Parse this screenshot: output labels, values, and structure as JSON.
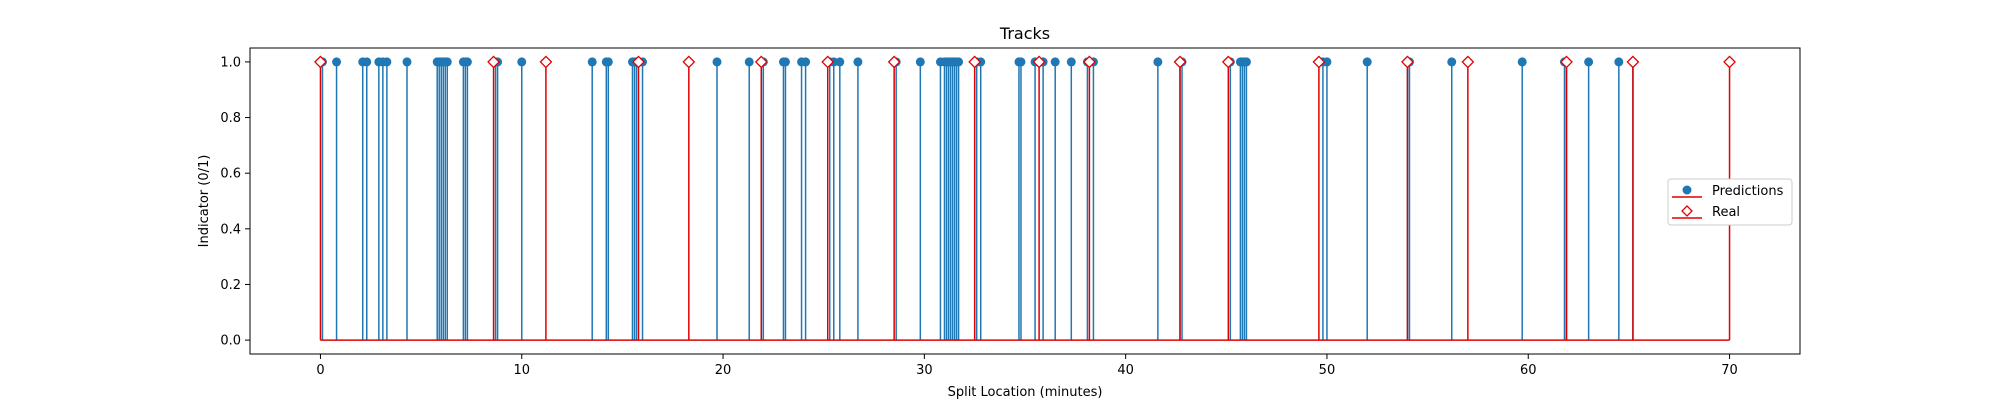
{
  "chart_data": {
    "type": "stem",
    "title": "Tracks",
    "xlabel": "Split Location (minutes)",
    "ylabel": "Indicator (0/1)",
    "xlim": [
      -3.5,
      73.5
    ],
    "ylim": [
      -0.05,
      1.05
    ],
    "xticks": [
      "0",
      "10",
      "20",
      "30",
      "40",
      "50",
      "60",
      "70"
    ],
    "xtick_values": [
      0,
      10,
      20,
      30,
      40,
      50,
      60,
      70
    ],
    "yticks": [
      "0.0",
      "0.2",
      "0.4",
      "0.6",
      "0.8",
      "1.0"
    ],
    "ytick_values": [
      0.0,
      0.2,
      0.4,
      0.6,
      0.8,
      1.0
    ],
    "legend_position": "center-right",
    "series": [
      {
        "name": "Predictions",
        "color": "#1f77b4",
        "marker": "circle",
        "x": [
          0.1,
          0.8,
          2.1,
          2.3,
          2.9,
          3.1,
          3.3,
          4.3,
          5.8,
          5.9,
          6.0,
          6.1,
          6.2,
          6.3,
          7.1,
          7.2,
          7.3,
          8.7,
          8.8,
          10.0,
          13.5,
          14.2,
          14.3,
          15.5,
          15.6,
          15.7,
          16.0,
          19.7,
          21.3,
          21.9,
          22.0,
          23.0,
          23.1,
          23.9,
          24.1,
          25.3,
          25.5,
          25.8,
          26.7,
          28.6,
          29.8,
          30.8,
          31.0,
          31.1,
          31.2,
          31.3,
          31.4,
          31.5,
          31.6,
          31.7,
          32.6,
          32.8,
          34.7,
          34.8,
          35.5,
          35.9,
          36.5,
          37.3,
          38.1,
          38.4,
          41.6,
          42.7,
          42.8,
          45.2,
          45.7,
          45.8,
          45.9,
          46.0,
          49.8,
          50.0,
          52.0,
          54.0,
          54.1,
          56.2,
          59.7,
          61.8,
          61.9,
          63.0,
          64.5,
          65.2
        ],
        "y": [
          1,
          1,
          1,
          1,
          1,
          1,
          1,
          1,
          1,
          1,
          1,
          1,
          1,
          1,
          1,
          1,
          1,
          1,
          1,
          1,
          1,
          1,
          1,
          1,
          1,
          1,
          1,
          1,
          1,
          1,
          1,
          1,
          1,
          1,
          1,
          1,
          1,
          1,
          1,
          1,
          1,
          1,
          1,
          1,
          1,
          1,
          1,
          1,
          1,
          1,
          1,
          1,
          1,
          1,
          1,
          1,
          1,
          1,
          1,
          1,
          1,
          1,
          1,
          1,
          1,
          1,
          1,
          1,
          1,
          1,
          1,
          1,
          1,
          1,
          1,
          1,
          1,
          1,
          1,
          1
        ]
      },
      {
        "name": "Real",
        "color": "#e00000",
        "marker": "diamond",
        "x": [
          0.0,
          8.6,
          11.2,
          15.8,
          18.3,
          21.9,
          25.2,
          28.5,
          32.5,
          35.7,
          38.2,
          42.7,
          45.1,
          49.6,
          54.0,
          57.0,
          61.9,
          65.2,
          70.0
        ],
        "y": [
          1,
          1,
          1,
          1,
          1,
          1,
          1,
          1,
          1,
          1,
          1,
          1,
          1,
          1,
          1,
          1,
          1,
          1,
          1
        ]
      }
    ]
  }
}
